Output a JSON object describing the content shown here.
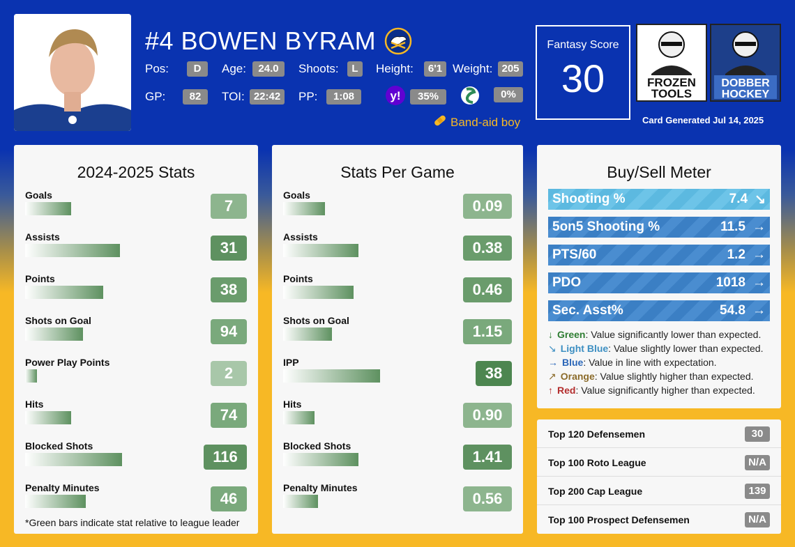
{
  "player": {
    "name": "#4 BOWEN BYRAM"
  },
  "info": {
    "pos_label": "Pos:",
    "pos": "D",
    "age_label": "Age:",
    "age": "24.0",
    "shoots_label": "Shoots:",
    "shoots": "L",
    "height_label": "Height:",
    "height": "6'1",
    "weight_label": "Weight:",
    "weight": "205",
    "gp_label": "GP:",
    "gp": "82",
    "toi_label": "TOI:",
    "toi": "22:42",
    "pp_label": "PP:",
    "pp": "1:08",
    "yahoo_pct": "35%",
    "espn_pct": "0%"
  },
  "injury_tag": "Band-aid boy",
  "fantasy": {
    "label": "Fantasy Score",
    "score": "30"
  },
  "logos": {
    "frozen_tools": [
      "FROZEN",
      "TOOLS"
    ],
    "dobber_hockey": [
      "DOBBER",
      "HOCKEY"
    ]
  },
  "card_generated": "Card Generated Jul 14, 2025",
  "season_stats": {
    "title": "2024-2025 Stats",
    "rows": [
      {
        "label": "Goals",
        "value": "7",
        "bar": 0.47,
        "shade": "#8db58e"
      },
      {
        "label": "Assists",
        "value": "31",
        "bar": 0.97,
        "shade": "#5e9160"
      },
      {
        "label": "Points",
        "value": "38",
        "bar": 0.8,
        "shade": "#6a9c6c"
      },
      {
        "label": "Shots on Goal",
        "value": "94",
        "bar": 0.59,
        "shade": "#7aa97c"
      },
      {
        "label": "Power Play Points",
        "value": "2",
        "bar": 0.12,
        "shade": "#a8c7a9"
      },
      {
        "label": "Hits",
        "value": "74",
        "bar": 0.47,
        "shade": "#7aa97c"
      },
      {
        "label": "Blocked Shots",
        "value": "116",
        "bar": 0.99,
        "shade": "#5e9160"
      },
      {
        "label": "Penalty Minutes",
        "value": "46",
        "bar": 0.62,
        "shade": "#7aa97c"
      }
    ],
    "footnote": "*Green bars indicate stat relative to league leader"
  },
  "per_game_stats": {
    "title": "Stats Per Game",
    "rows": [
      {
        "label": "Goals",
        "value": "0.09",
        "bar": 0.43,
        "shade": "#8db58e"
      },
      {
        "label": "Assists",
        "value": "0.38",
        "bar": 0.77,
        "shade": "#6a9c6c"
      },
      {
        "label": "Points",
        "value": "0.46",
        "bar": 0.72,
        "shade": "#6a9c6c"
      },
      {
        "label": "Shots on Goal",
        "value": "1.15",
        "bar": 0.5,
        "shade": "#7aa97c"
      },
      {
        "label": "IPP",
        "value": "38",
        "bar": 0.99,
        "shade": "#4d8650"
      },
      {
        "label": "Hits",
        "value": "0.90",
        "bar": 0.32,
        "shade": "#8db58e"
      },
      {
        "label": "Blocked Shots",
        "value": "1.41",
        "bar": 0.77,
        "shade": "#5e9160"
      },
      {
        "label": "Penalty Minutes",
        "value": "0.56",
        "bar": 0.36,
        "shade": "#8db58e"
      }
    ]
  },
  "buy_sell": {
    "title": "Buy/Sell Meter",
    "rows": [
      {
        "label": "Shooting %",
        "value": "7.4",
        "trend": "slightly-lower",
        "color": "lightblue",
        "arrow": "↘"
      },
      {
        "label": "5on5 Shooting %",
        "value": "11.5",
        "trend": "in-line",
        "color": "blue",
        "arrow": "→"
      },
      {
        "label": "PTS/60",
        "value": "1.2",
        "trend": "in-line",
        "color": "blue",
        "arrow": "→"
      },
      {
        "label": "PDO",
        "value": "1018",
        "trend": "in-line",
        "color": "blue",
        "arrow": "→"
      },
      {
        "label": "Sec. Asst%",
        "value": "54.8",
        "trend": "in-line",
        "color": "blue",
        "arrow": "→"
      }
    ],
    "legend": [
      {
        "arrow": "↓",
        "name": "Green",
        "desc": ": Value significantly lower than expected.",
        "color": "#2e7d32"
      },
      {
        "arrow": "↘",
        "name": "Light Blue",
        "desc": ": Value slightly lower than expected.",
        "color": "#3d8fc2"
      },
      {
        "arrow": "→",
        "name": "Blue",
        "desc": ": Value in line with expectation.",
        "color": "#2a66b8"
      },
      {
        "arrow": "↗",
        "name": "Orange",
        "desc": ": Value slightly higher than expected.",
        "color": "#8b6b2a"
      },
      {
        "arrow": "↑",
        "name": "Red",
        "desc": ": Value significantly higher than expected.",
        "color": "#b32d2d"
      }
    ]
  },
  "rankings": [
    {
      "label": "Top 120 Defensemen",
      "value": "30"
    },
    {
      "label": "Top 100 Roto League",
      "value": "N/A"
    },
    {
      "label": "Top 200 Cap League",
      "value": "139"
    },
    {
      "label": "Top 100 Prospect Defensemen",
      "value": "N/A"
    }
  ]
}
